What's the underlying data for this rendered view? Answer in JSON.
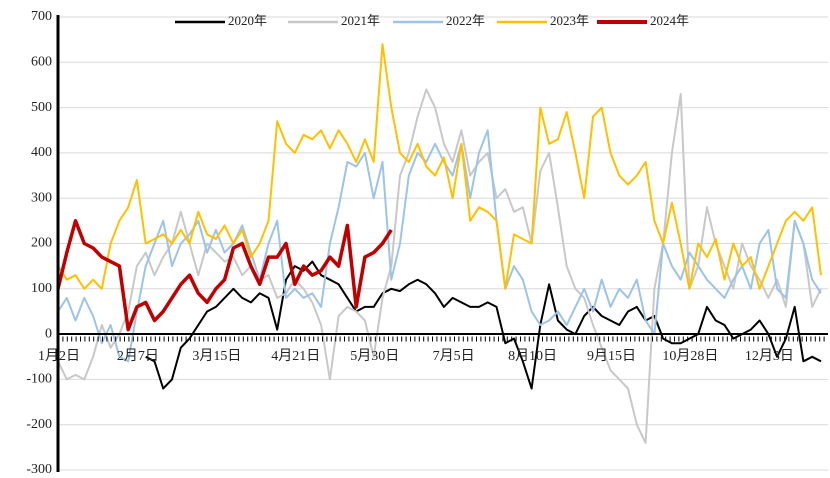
{
  "chart_data": {
    "type": "line",
    "categories": [
      "1月2日",
      null,
      null,
      null,
      null,
      null,
      null,
      null,
      null,
      "2月7日",
      null,
      null,
      null,
      null,
      null,
      null,
      null,
      null,
      "3月15日",
      null,
      null,
      null,
      null,
      null,
      null,
      null,
      null,
      "4月21日",
      null,
      null,
      null,
      null,
      null,
      null,
      null,
      null,
      "5月30日",
      null,
      null,
      null,
      null,
      null,
      null,
      null,
      null,
      "7月5日",
      null,
      null,
      null,
      null,
      null,
      null,
      null,
      null,
      "8月10日",
      null,
      null,
      null,
      null,
      null,
      null,
      null,
      null,
      "9月15日",
      null,
      null,
      null,
      null,
      null,
      null,
      null,
      null,
      "10月28日",
      null,
      null,
      null,
      null,
      null,
      null,
      null,
      null,
      "12月3日",
      null,
      null,
      null,
      null,
      null,
      null
    ],
    "ylim": [
      -300,
      700
    ],
    "yticks": [
      -300,
      -200,
      -100,
      0,
      100,
      200,
      300,
      400,
      500,
      600,
      700
    ],
    "grid": true,
    "legend": "top",
    "series": [
      {
        "name": "2020年",
        "color": "#000000",
        "values": [
          null,
          null,
          null,
          null,
          null,
          null,
          null,
          null,
          null,
          null,
          -50,
          -60,
          -120,
          -100,
          -30,
          -10,
          20,
          50,
          60,
          80,
          100,
          80,
          70,
          90,
          80,
          10,
          120,
          150,
          140,
          160,
          130,
          120,
          110,
          80,
          50,
          60,
          60,
          90,
          100,
          95,
          110,
          120,
          110,
          90,
          60,
          80,
          70,
          60,
          60,
          70,
          60,
          -20,
          -10,
          -60,
          -120,
          20,
          110,
          30,
          10,
          0,
          40,
          60,
          40,
          30,
          20,
          50,
          60,
          30,
          40,
          -10,
          -20,
          -20,
          -10,
          0,
          60,
          30,
          20,
          -10,
          0,
          10,
          30,
          0,
          -50,
          -10,
          60,
          -60,
          -50,
          -60
        ]
      },
      {
        "name": "2021年",
        "color": "#c8c8c8",
        "values": [
          -60,
          -100,
          -90,
          -100,
          -50,
          20,
          -30,
          0,
          50,
          150,
          180,
          130,
          170,
          200,
          270,
          200,
          130,
          200,
          180,
          160,
          170,
          130,
          150,
          120,
          130,
          80,
          90,
          120,
          100,
          70,
          20,
          -100,
          40,
          60,
          50,
          30,
          -50,
          80,
          150,
          350,
          400,
          480,
          540,
          500,
          420,
          380,
          450,
          350,
          380,
          400,
          300,
          320,
          270,
          280,
          200,
          360,
          400,
          280,
          150,
          100,
          80,
          20,
          -30,
          -80,
          -100,
          -120,
          -200,
          -240,
          100,
          200,
          400,
          530,
          100,
          150,
          280,
          200,
          150,
          100,
          200,
          150,
          120,
          80,
          120,
          60,
          250,
          200,
          60,
          100
        ]
      },
      {
        "name": "2022年",
        "color": "#9dc3e6",
        "values": [
          50,
          80,
          30,
          80,
          40,
          -20,
          20,
          -50,
          -60,
          50,
          150,
          200,
          250,
          150,
          200,
          220,
          250,
          180,
          230,
          180,
          200,
          240,
          180,
          120,
          200,
          250,
          80,
          100,
          80,
          90,
          60,
          200,
          280,
          380,
          370,
          400,
          300,
          380,
          120,
          200,
          350,
          400,
          380,
          420,
          380,
          350,
          420,
          300,
          400,
          450,
          250,
          100,
          150,
          120,
          50,
          20,
          30,
          50,
          20,
          60,
          100,
          50,
          120,
          60,
          100,
          80,
          120,
          30,
          0,
          200,
          150,
          120,
          180,
          150,
          120,
          100,
          80,
          120,
          150,
          100,
          200,
          230,
          100,
          80,
          250,
          200,
          120,
          90
        ]
      },
      {
        "name": "2023年",
        "color": "#ffc000",
        "values": [
          150,
          120,
          130,
          100,
          120,
          100,
          200,
          250,
          280,
          340,
          200,
          210,
          220,
          200,
          230,
          200,
          270,
          220,
          210,
          240,
          200,
          230,
          170,
          200,
          250,
          470,
          420,
          400,
          440,
          430,
          450,
          410,
          450,
          420,
          380,
          430,
          380,
          640,
          500,
          400,
          380,
          420,
          370,
          350,
          390,
          300,
          420,
          250,
          280,
          270,
          250,
          100,
          220,
          210,
          200,
          500,
          420,
          430,
          490,
          400,
          300,
          480,
          500,
          400,
          350,
          330,
          350,
          380,
          250,
          200,
          290,
          200,
          100,
          200,
          170,
          210,
          120,
          200,
          150,
          170,
          100,
          150,
          200,
          250,
          270,
          250,
          280,
          130
        ]
      },
      {
        "name": "2024年",
        "color": "#c00000",
        "values": [
          100,
          180,
          250,
          200,
          190,
          170,
          160,
          150,
          10,
          60,
          70,
          30,
          50,
          80,
          110,
          130,
          90,
          70,
          100,
          120,
          190,
          200,
          150,
          110,
          170,
          170,
          200,
          110,
          150,
          130,
          140,
          170,
          150,
          240,
          60,
          170,
          180,
          200,
          230,
          null,
          null,
          null,
          null,
          null,
          null,
          null,
          null,
          null,
          null,
          null,
          null,
          null,
          null,
          null,
          null,
          null,
          null,
          null,
          null,
          null,
          null,
          null,
          null,
          null,
          null,
          null,
          null,
          null,
          null,
          null,
          null,
          null,
          null,
          null,
          null,
          null,
          null,
          null,
          null,
          null,
          null,
          null,
          null,
          null,
          null,
          null,
          null,
          null
        ]
      }
    ]
  }
}
